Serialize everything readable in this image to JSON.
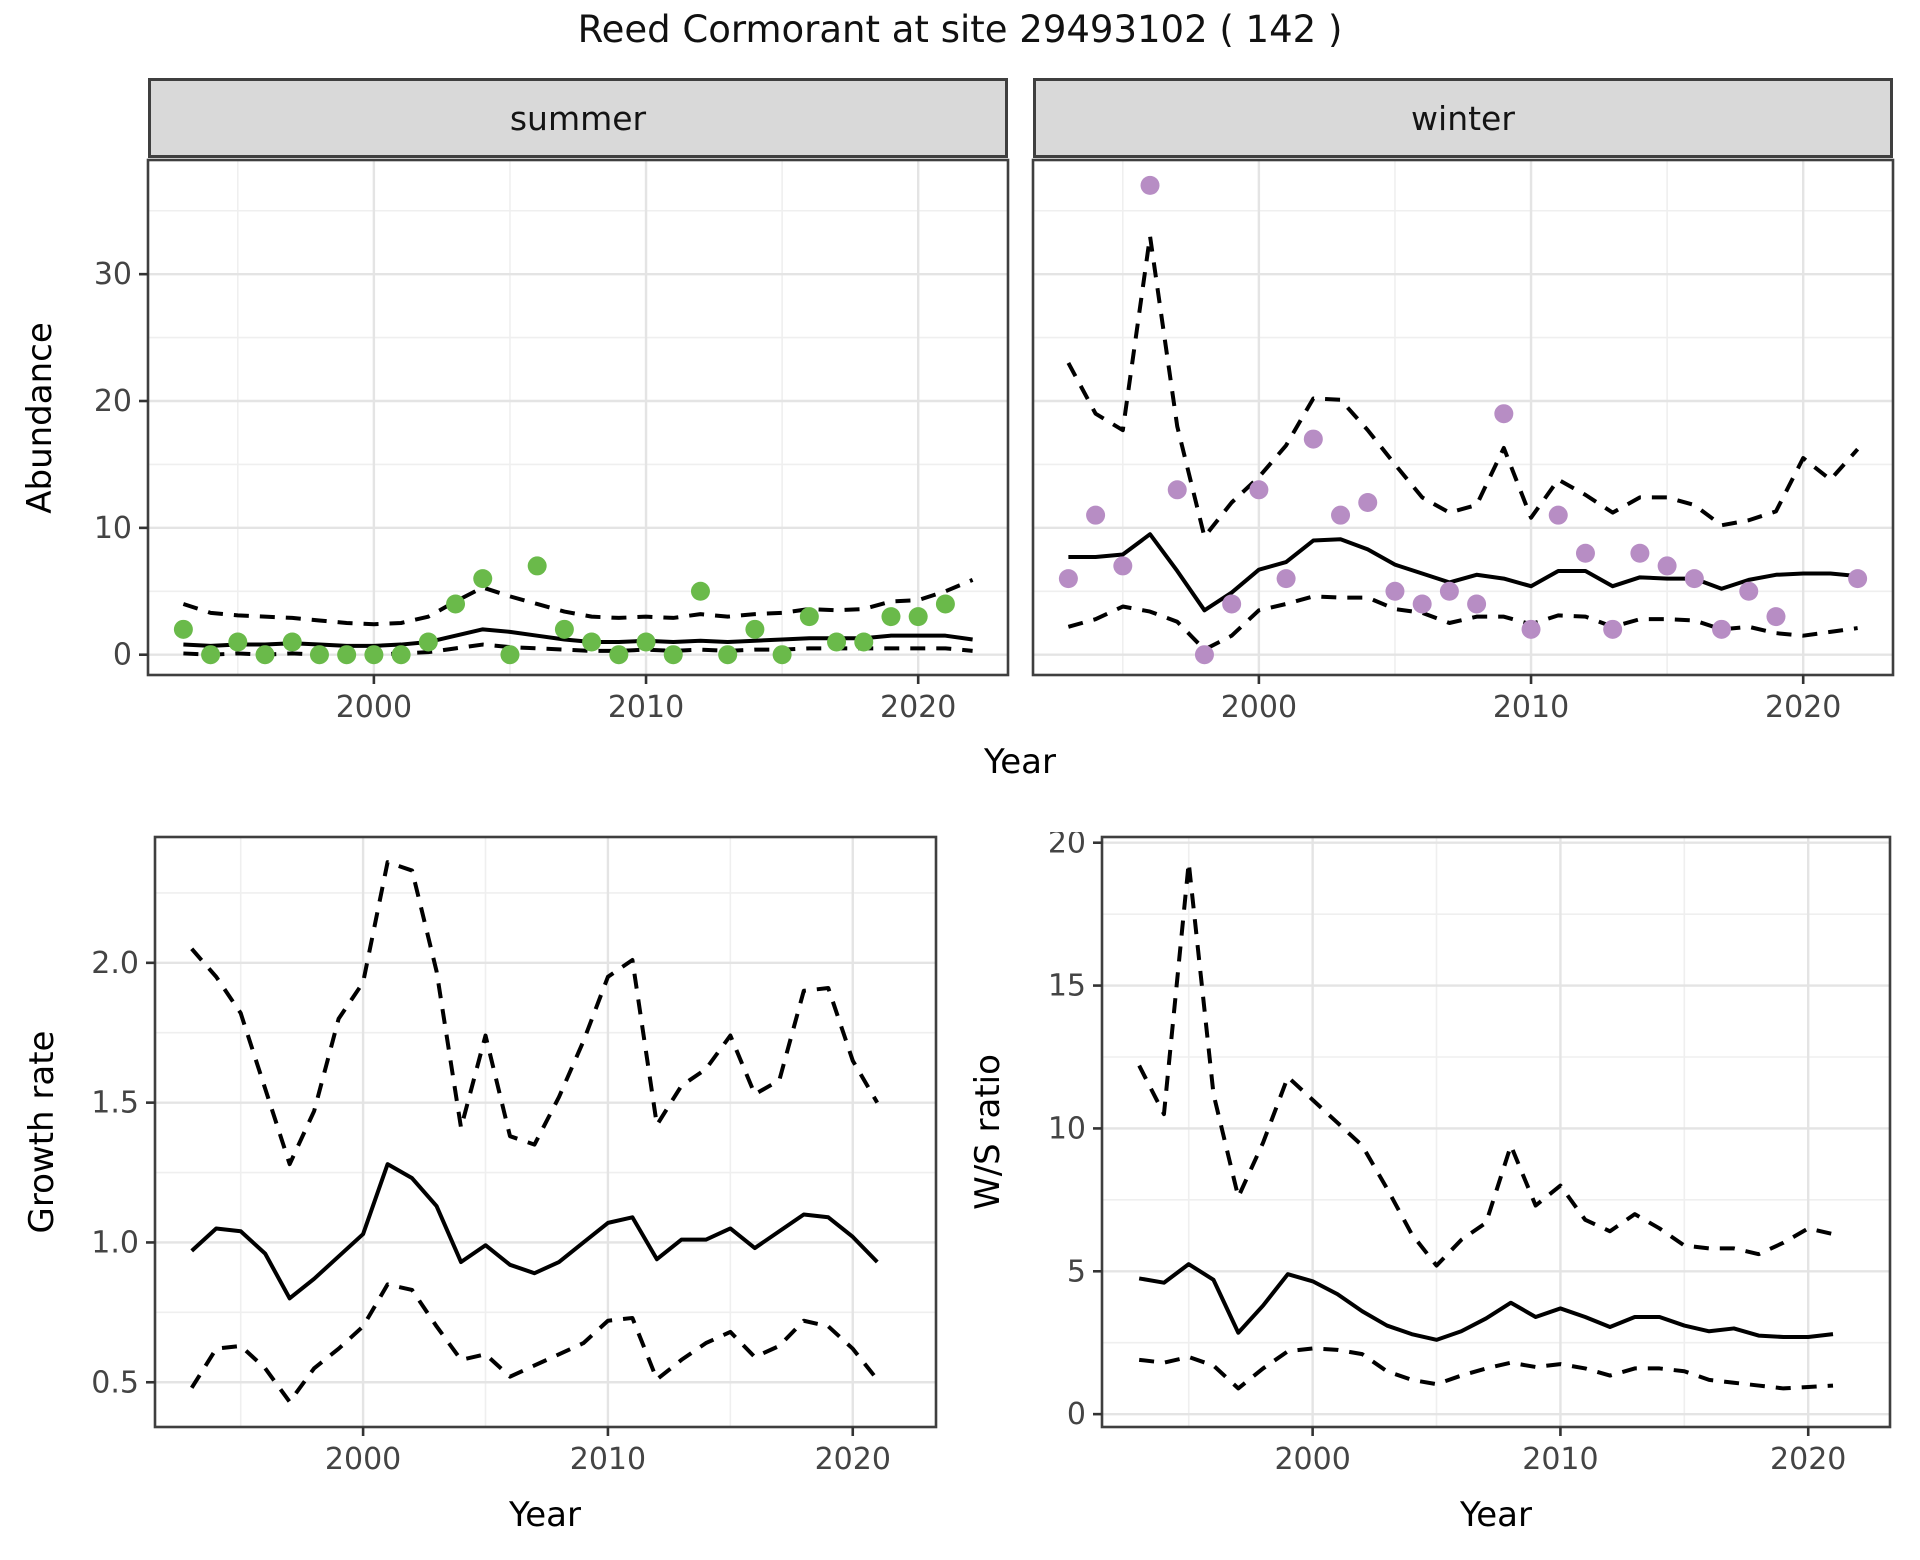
{
  "title": "Reed Cormorant at site 29493102 ( 142 )",
  "colors": {
    "summer_points": "#6ABA4A",
    "winter_points": "#B78DC4",
    "line": "#000000",
    "strip_bg": "#D9D9D9",
    "grid_major": "#E4E4E4",
    "grid_minor": "#EFEFEF",
    "panel_border": "#3F3F3F",
    "tick_text": "#444444"
  },
  "chart_data": [
    {
      "id": "summer",
      "type": "scatter",
      "facet": "summer",
      "xlabel": "Year",
      "ylabel": "Abundance",
      "x": [
        1993,
        1994,
        1995,
        1996,
        1997,
        1998,
        1999,
        2000,
        2001,
        2002,
        2003,
        2004,
        2005,
        2006,
        2007,
        2008,
        2009,
        2010,
        2011,
        2012,
        2013,
        2014,
        2015,
        2016,
        2017,
        2018,
        2019,
        2020,
        2021,
        2022
      ],
      "points": [
        2,
        0,
        1,
        0,
        1,
        0,
        0,
        0,
        0,
        1,
        4,
        6,
        0,
        7,
        2,
        1,
        0,
        1,
        0,
        5,
        0,
        2,
        0,
        3,
        1,
        1,
        3,
        3,
        4,
        null
      ],
      "mean": [
        0.8,
        0.7,
        0.8,
        0.8,
        0.9,
        0.8,
        0.7,
        0.7,
        0.8,
        1.0,
        1.5,
        2.0,
        1.8,
        1.5,
        1.2,
        1.0,
        1.0,
        1.1,
        1.0,
        1.1,
        1.0,
        1.1,
        1.2,
        1.3,
        1.3,
        1.3,
        1.5,
        1.5,
        1.5,
        1.2
      ],
      "upper": [
        4.0,
        3.3,
        3.1,
        3.0,
        2.9,
        2.7,
        2.5,
        2.4,
        2.5,
        3.0,
        4.2,
        5.3,
        4.6,
        4.0,
        3.4,
        3.0,
        2.9,
        3.0,
        2.9,
        3.2,
        3.0,
        3.2,
        3.3,
        3.6,
        3.5,
        3.6,
        4.2,
        4.3,
        5.0,
        5.9
      ],
      "lower": [
        0.1,
        0.0,
        0.1,
        0.0,
        0.1,
        0.0,
        0.0,
        0.0,
        0.1,
        0.2,
        0.5,
        0.8,
        0.6,
        0.5,
        0.4,
        0.3,
        0.3,
        0.4,
        0.3,
        0.4,
        0.3,
        0.4,
        0.4,
        0.5,
        0.5,
        0.5,
        0.5,
        0.5,
        0.5,
        0.3
      ],
      "point_color": "#6ABA4A",
      "xlim": [
        1991.7,
        2023.3
      ],
      "ylim": [
        -1.6,
        39.0
      ],
      "xticks": [
        2000,
        2010,
        2020
      ],
      "xtick_labels": [
        "2000",
        "2010",
        "2020"
      ],
      "yticks": [
        0,
        10,
        20,
        30
      ],
      "ytick_labels": [
        "0",
        "10",
        "20",
        "30"
      ],
      "xminor": [
        1995,
        2005,
        2015
      ],
      "yminor": [
        5,
        15,
        25,
        35
      ],
      "grid": true,
      "legend": "none"
    },
    {
      "id": "winter",
      "type": "scatter",
      "facet": "winter",
      "xlabel": "Year",
      "ylabel": "Abundance",
      "x": [
        1993,
        1994,
        1995,
        1996,
        1997,
        1998,
        1999,
        2000,
        2001,
        2002,
        2003,
        2004,
        2005,
        2006,
        2007,
        2008,
        2009,
        2010,
        2011,
        2012,
        2013,
        2014,
        2015,
        2016,
        2017,
        2018,
        2019,
        2020,
        2021,
        2022
      ],
      "points": [
        6,
        11,
        7,
        37,
        13,
        0,
        4,
        13,
        6,
        17,
        11,
        12,
        5,
        4,
        5,
        4,
        19,
        2,
        11,
        8,
        2,
        8,
        7,
        6,
        2,
        5,
        3,
        null,
        null,
        6
      ],
      "mean": [
        7.7,
        7.7,
        7.9,
        9.5,
        6.6,
        3.5,
        4.9,
        6.7,
        7.3,
        9.0,
        9.1,
        8.3,
        7.1,
        6.4,
        5.7,
        6.3,
        6.0,
        5.4,
        6.6,
        6.6,
        5.4,
        6.1,
        6.0,
        6.0,
        5.2,
        5.9,
        6.3,
        6.4,
        6.4,
        6.2
      ],
      "upper": [
        23.0,
        19.0,
        17.7,
        33.0,
        18.0,
        9.3,
        12.0,
        14.0,
        16.5,
        20.2,
        20.1,
        17.7,
        15.0,
        12.4,
        11.2,
        11.8,
        16.3,
        10.8,
        13.8,
        12.6,
        11.2,
        12.4,
        12.4,
        11.8,
        10.2,
        10.6,
        11.3,
        15.5,
        13.8,
        16.2
      ],
      "lower": [
        2.2,
        2.8,
        3.8,
        3.4,
        2.6,
        0.4,
        1.5,
        3.5,
        4.0,
        4.6,
        4.5,
        4.5,
        3.6,
        3.3,
        2.5,
        3.0,
        3.0,
        2.4,
        3.1,
        3.0,
        2.2,
        2.8,
        2.8,
        2.7,
        2.0,
        2.2,
        1.7,
        1.5,
        1.8,
        2.1
      ],
      "point_color": "#B78DC4",
      "xlim": [
        1991.7,
        2023.3
      ],
      "ylim": [
        -1.6,
        39.0
      ],
      "xticks": [
        2000,
        2010,
        2020
      ],
      "xtick_labels": [
        "2000",
        "2010",
        "2020"
      ],
      "yticks": [
        0,
        10,
        20,
        30
      ],
      "ytick_labels": [
        "0",
        "10",
        "20",
        "30"
      ],
      "xminor": [
        1995,
        2005,
        2015
      ],
      "yminor": [
        5,
        15,
        25,
        35
      ],
      "grid": true,
      "legend": "none"
    },
    {
      "id": "growth",
      "type": "line",
      "facet": "",
      "xlabel": "Year",
      "ylabel": "Growth rate",
      "x": [
        1993,
        1994,
        1995,
        1996,
        1997,
        1998,
        1999,
        2000,
        2001,
        2002,
        2003,
        2004,
        2005,
        2006,
        2007,
        2008,
        2009,
        2010,
        2011,
        2012,
        2013,
        2014,
        2015,
        2016,
        2017,
        2018,
        2019,
        2020,
        2021
      ],
      "points": [],
      "mean": [
        0.97,
        1.05,
        1.04,
        0.96,
        0.8,
        0.87,
        0.95,
        1.03,
        1.28,
        1.23,
        1.13,
        0.93,
        0.99,
        0.92,
        0.89,
        0.93,
        1.0,
        1.07,
        1.09,
        0.94,
        1.01,
        1.01,
        1.05,
        0.98,
        1.04,
        1.1,
        1.09,
        1.02,
        0.93
      ],
      "upper": [
        2.05,
        1.95,
        1.82,
        1.55,
        1.28,
        1.47,
        1.8,
        1.93,
        2.36,
        2.33,
        1.97,
        1.41,
        1.74,
        1.38,
        1.35,
        1.52,
        1.72,
        1.95,
        2.01,
        1.42,
        1.56,
        1.62,
        1.74,
        1.53,
        1.58,
        1.9,
        1.91,
        1.65,
        1.5
      ],
      "lower": [
        0.48,
        0.62,
        0.63,
        0.55,
        0.43,
        0.55,
        0.62,
        0.7,
        0.85,
        0.83,
        0.7,
        0.58,
        0.6,
        0.52,
        0.56,
        0.6,
        0.64,
        0.72,
        0.73,
        0.51,
        0.58,
        0.64,
        0.68,
        0.59,
        0.63,
        0.72,
        0.7,
        0.62,
        0.51
      ],
      "point_color": "#000000",
      "xlim": [
        1991.5,
        2023.4
      ],
      "ylim": [
        0.34,
        2.45
      ],
      "xticks": [
        2000,
        2010,
        2020
      ],
      "xtick_labels": [
        "2000",
        "2010",
        "2020"
      ],
      "yticks": [
        0.5,
        1.0,
        1.5,
        2.0
      ],
      "ytick_labels": [
        "0.5",
        "1.0",
        "1.5",
        "2.0"
      ],
      "xminor": [
        1995,
        2005,
        2015
      ],
      "yminor": [
        0.75,
        1.25,
        1.75,
        2.25
      ],
      "grid": true,
      "legend": "none"
    },
    {
      "id": "ws",
      "type": "line",
      "facet": "",
      "xlabel": "Year",
      "ylabel": "W/S ratio",
      "x": [
        1993,
        1994,
        1995,
        1996,
        1997,
        1998,
        1999,
        2000,
        2001,
        2002,
        2003,
        2004,
        2005,
        2006,
        2007,
        2008,
        2009,
        2010,
        2011,
        2012,
        2013,
        2014,
        2015,
        2016,
        2017,
        2018,
        2019,
        2020,
        2021
      ],
      "points": [],
      "mean": [
        4.75,
        4.6,
        5.25,
        4.7,
        2.85,
        3.8,
        4.9,
        4.65,
        4.2,
        3.6,
        3.1,
        2.8,
        2.6,
        2.9,
        3.35,
        3.9,
        3.4,
        3.7,
        3.4,
        3.05,
        3.4,
        3.4,
        3.1,
        2.9,
        3.0,
        2.75,
        2.7,
        2.7,
        2.8
      ],
      "upper": [
        12.2,
        10.5,
        19.3,
        11.2,
        7.6,
        9.5,
        11.8,
        11.0,
        10.2,
        9.4,
        7.9,
        6.3,
        5.2,
        6.1,
        6.7,
        9.4,
        7.3,
        8.0,
        6.8,
        6.4,
        7.0,
        6.5,
        5.9,
        5.8,
        5.8,
        5.6,
        6.0,
        6.5,
        6.3
      ],
      "lower": [
        1.9,
        1.8,
        2.0,
        1.7,
        0.9,
        1.6,
        2.2,
        2.3,
        2.25,
        2.1,
        1.5,
        1.2,
        1.05,
        1.35,
        1.6,
        1.8,
        1.65,
        1.75,
        1.6,
        1.35,
        1.6,
        1.6,
        1.5,
        1.2,
        1.1,
        1.0,
        0.9,
        0.95,
        1.0
      ],
      "point_color": "#000000",
      "xlim": [
        1991.5,
        2023.3
      ],
      "ylim": [
        -0.45,
        20.2
      ],
      "xticks": [
        2000,
        2010,
        2020
      ],
      "xtick_labels": [
        "2000",
        "2010",
        "2020"
      ],
      "yticks": [
        0,
        5,
        10,
        15,
        20
      ],
      "ytick_labels": [
        "0",
        "5",
        "10",
        "15",
        "20"
      ],
      "xminor": [
        1995,
        2005,
        2015
      ],
      "yminor": [
        2.5,
        7.5,
        12.5,
        17.5
      ],
      "grid": true,
      "legend": "none"
    }
  ]
}
